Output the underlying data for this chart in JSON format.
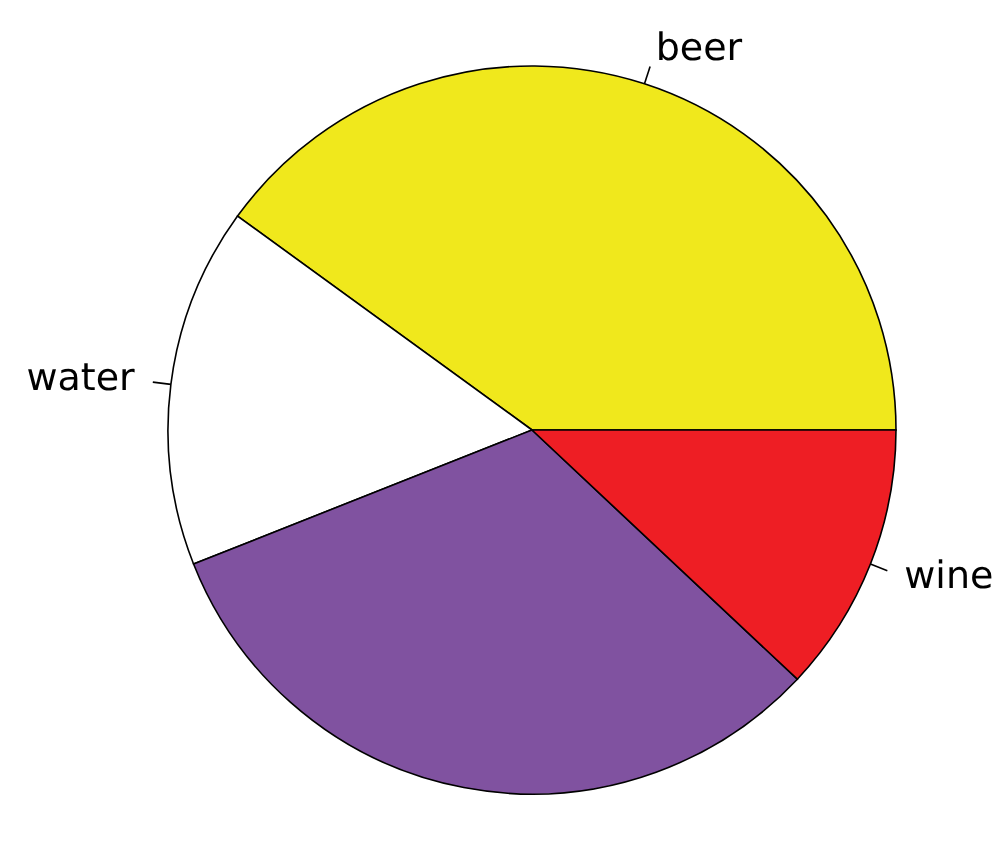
{
  "chart_data": {
    "type": "pie",
    "categories": [
      "beer",
      "water",
      null,
      "wine"
    ],
    "values": [
      40,
      16,
      32,
      12
    ],
    "colors": [
      "#f0e81c",
      "#ffffff",
      "#8052a0",
      "#ee1e24"
    ]
  }
}
